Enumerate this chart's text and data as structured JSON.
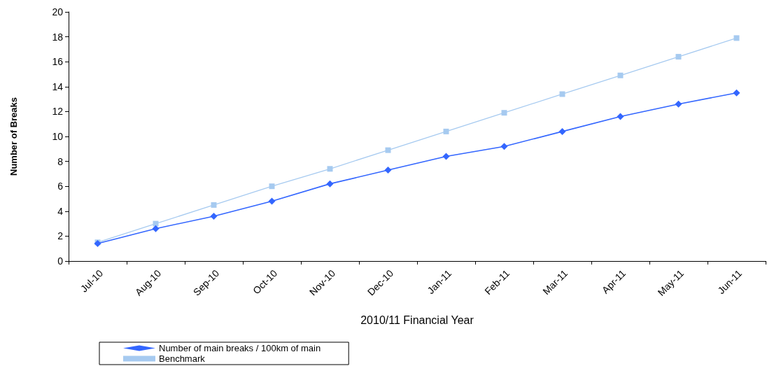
{
  "chart_data": {
    "type": "line",
    "xlabel": "2010/11 Financial Year",
    "ylabel": "Number of Breaks",
    "categories": [
      "Jul-10",
      "Aug-10",
      "Sep-10",
      "Oct-10",
      "Nov-10",
      "Dec-10",
      "Jan-11",
      "Feb-11",
      "Mar-11",
      "Apr-11",
      "May-11",
      "Jun-11"
    ],
    "series": [
      {
        "name": "Number of main breaks / 100km of main",
        "color": "#3366ff",
        "marker": "diamond",
        "values": [
          1.4,
          2.6,
          3.6,
          4.8,
          6.2,
          7.3,
          8.4,
          9.2,
          10.4,
          11.6,
          12.6,
          13.5
        ]
      },
      {
        "name": "Benchmark",
        "color": "#a6caf0",
        "marker": "square",
        "values": [
          1.5,
          3.0,
          4.5,
          6.0,
          7.4,
          8.9,
          10.4,
          11.9,
          13.4,
          14.9,
          16.4,
          17.9
        ]
      }
    ],
    "ylim": [
      0,
      20
    ],
    "yticks": [
      0,
      2,
      4,
      6,
      8,
      10,
      12,
      14,
      16,
      18,
      20
    ],
    "grid": false,
    "legend": "bottom left",
    "line_style": "solid"
  }
}
